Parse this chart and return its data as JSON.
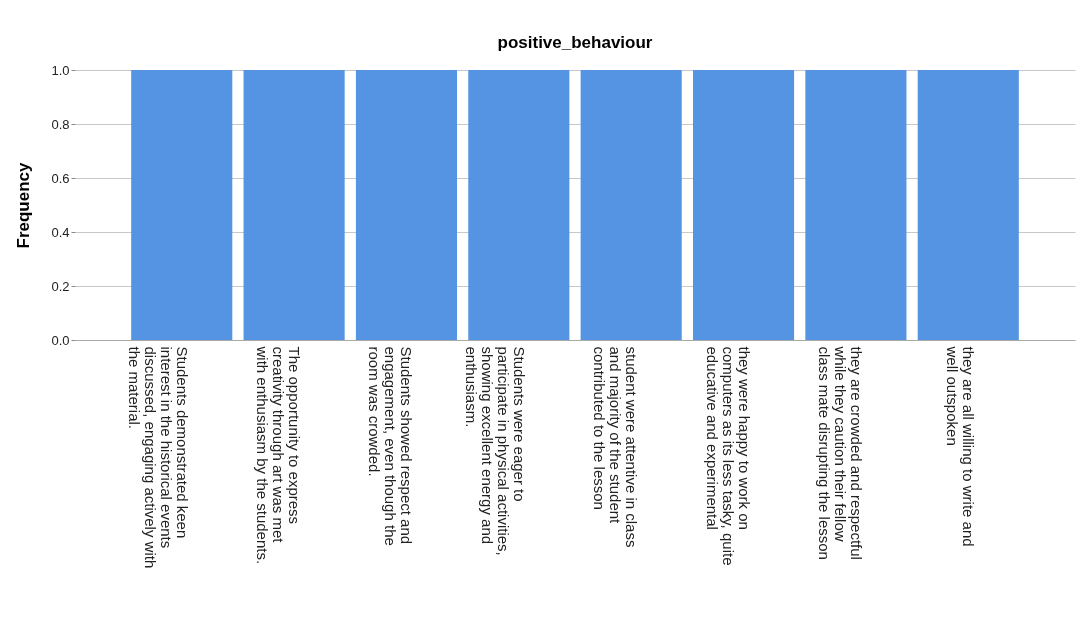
{
  "chart_data": {
    "type": "bar",
    "title": "positive_behaviour",
    "ylabel": "Frequency",
    "categories": [
      "Students demonstrated keen interest in the historical events discussed, engaging actively with the material.",
      "The opportunity to express creativity through art was met with enthusiasm by the students.",
      "Students showed respect and engagement, even though the room was crowded.",
      "Students were eager to participate in physical activities, showing excellent energy and enthusiasm.",
      "student were attentive in class and majority of the student contributed to the lesson",
      "they were happy to work on computers as its less tasky, quite educative and experimental",
      "they are crowded and respectful while they caution their fellow class mate disrupting the lesson",
      "they are all willing to write and well outspoken"
    ],
    "values": [
      1,
      1,
      1,
      1,
      1,
      1,
      1,
      1
    ],
    "color": "#5594e2",
    "ylim": [
      0,
      1
    ],
    "yticks": [
      {
        "value": 0,
        "label": "0.0"
      },
      {
        "value": 0.2,
        "label": "0.2"
      },
      {
        "value": 0.4,
        "label": "0.4"
      },
      {
        "value": 0.6,
        "label": "0.6"
      },
      {
        "value": 0.8,
        "label": "0.8"
      },
      {
        "value": 1,
        "label": "1.0"
      }
    ],
    "grid": "y"
  }
}
